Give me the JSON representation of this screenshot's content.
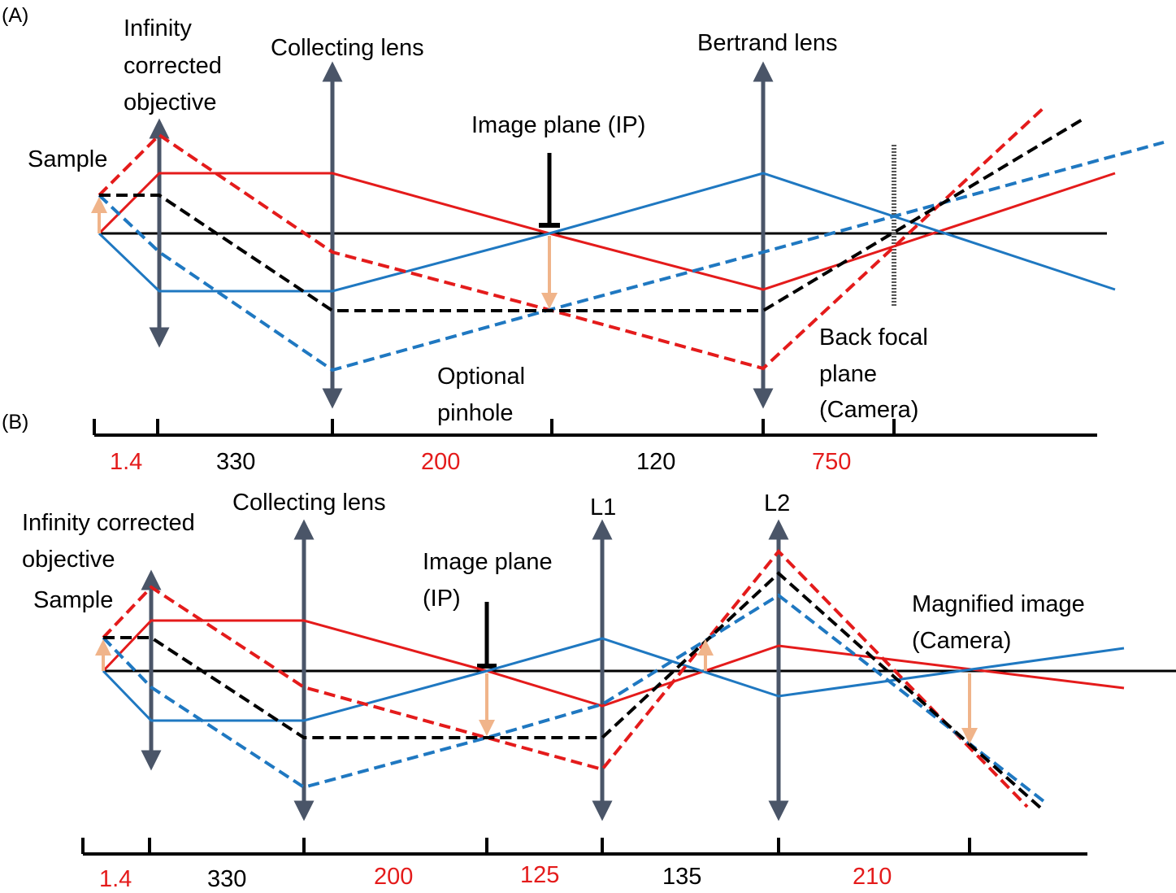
{
  "colors": {
    "red": "#e41b1b",
    "blue": "#1f78c1",
    "black": "#000000",
    "lens": "#4a5568",
    "arrow": "#f0b48a",
    "label_red": "#e41b1b"
  },
  "panel_a": {
    "tag": "(A)",
    "labels": {
      "objective": [
        "Infinity",
        "corrected",
        "objective"
      ],
      "sample": "Sample",
      "collecting": "Collecting lens",
      "image_plane": "Image plane (IP)",
      "bertrand": "Bertrand lens",
      "pinhole": [
        "Optional",
        "pinhole"
      ],
      "bfp": [
        "Back focal",
        "plane",
        "(Camera)"
      ]
    },
    "distances": [
      "1.4",
      "330",
      "200",
      "120",
      "750"
    ]
  },
  "panel_b": {
    "tag": "(B)",
    "labels": {
      "objective": [
        "Infinity corrected",
        "objective"
      ],
      "sample": "Sample",
      "collecting": "Collecting lens",
      "image_plane": [
        "Image plane",
        "(IP)"
      ],
      "l1": "L1",
      "l2": "L2",
      "magnified": [
        "Magnified image",
        "(Camera)"
      ]
    },
    "distances": [
      "1.4",
      "330",
      "200",
      "125",
      "135",
      "210"
    ]
  }
}
